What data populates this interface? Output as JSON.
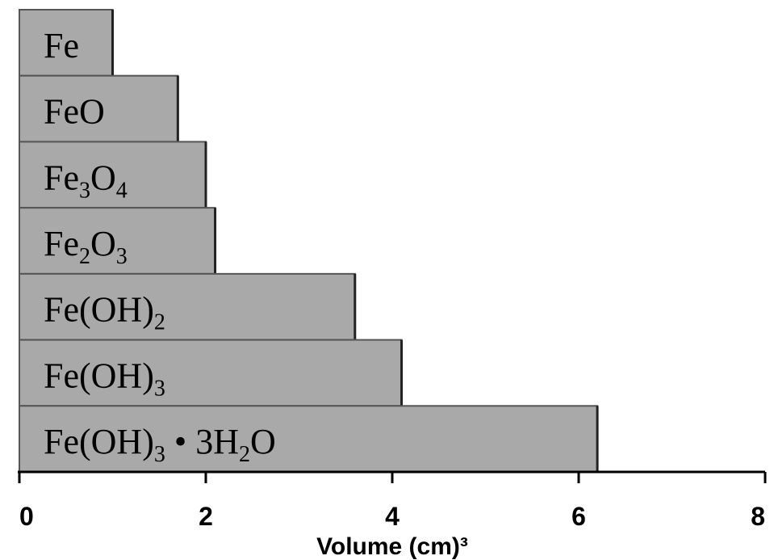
{
  "chart_data": {
    "type": "bar",
    "orientation": "horizontal",
    "categories": [
      {
        "parts": [
          {
            "t": "Fe"
          }
        ],
        "text": "Fe"
      },
      {
        "parts": [
          {
            "t": "FeO"
          }
        ],
        "text": "FeO"
      },
      {
        "parts": [
          {
            "t": "Fe"
          },
          {
            "t": "3",
            "sub": true
          },
          {
            "t": "O"
          },
          {
            "t": "4",
            "sub": true
          }
        ],
        "text": "Fe3O4"
      },
      {
        "parts": [
          {
            "t": "Fe"
          },
          {
            "t": "2",
            "sub": true
          },
          {
            "t": "O"
          },
          {
            "t": "3",
            "sub": true
          }
        ],
        "text": "Fe2O3"
      },
      {
        "parts": [
          {
            "t": "Fe(OH)"
          },
          {
            "t": "2",
            "sub": true
          }
        ],
        "text": "Fe(OH)2"
      },
      {
        "parts": [
          {
            "t": "Fe(OH)"
          },
          {
            "t": "3",
            "sub": true
          }
        ],
        "text": "Fe(OH)3"
      },
      {
        "parts": [
          {
            "t": "Fe(OH)"
          },
          {
            "t": "3",
            "sub": true
          },
          {
            "t": " • 3H"
          },
          {
            "t": "2",
            "sub": true
          },
          {
            "t": "O"
          }
        ],
        "text": "Fe(OH)3 • 3H2O"
      }
    ],
    "values": [
      1.0,
      1.7,
      2.0,
      2.1,
      3.6,
      4.1,
      6.2
    ],
    "xlim": [
      0,
      8
    ],
    "xticks": [
      "0",
      "2",
      "4",
      "6",
      "8"
    ],
    "xlabel": "Volume (cm)³",
    "ylabel": "",
    "title": "",
    "grid": false,
    "colors": {
      "bar_fill": "#a9a9a9",
      "bar_stroke": "#555555",
      "axis": "#000000"
    }
  }
}
